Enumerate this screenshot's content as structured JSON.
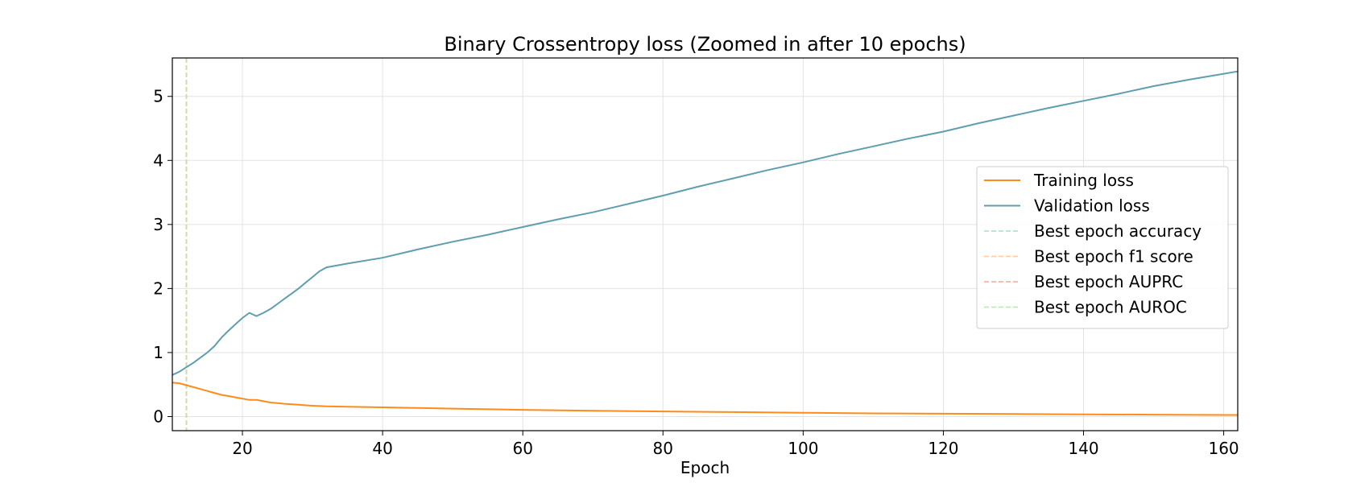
{
  "chart_data": {
    "type": "line",
    "title": "Binary Crossentropy loss (Zoomed in after 10 epochs)",
    "xlabel": "Epoch",
    "ylabel": "",
    "xlim": [
      10,
      162
    ],
    "ylim": [
      -0.22,
      5.6
    ],
    "xticks": [
      20,
      40,
      60,
      80,
      100,
      120,
      140,
      160
    ],
    "yticks": [
      0,
      1,
      2,
      3,
      4,
      5
    ],
    "grid": true,
    "legend_position": "right",
    "series": [
      {
        "name": "Training loss",
        "color": "#ff8c1a",
        "style": "solid",
        "x": [
          10,
          11,
          12,
          13,
          14,
          15,
          16,
          17,
          18,
          19,
          20,
          21,
          22,
          23,
          24,
          25,
          26,
          28,
          30,
          32,
          35,
          40,
          45,
          50,
          60,
          70,
          80,
          90,
          100,
          110,
          120,
          130,
          140,
          150,
          162
        ],
        "y": [
          0.53,
          0.52,
          0.49,
          0.46,
          0.43,
          0.4,
          0.37,
          0.34,
          0.32,
          0.3,
          0.28,
          0.26,
          0.26,
          0.24,
          0.22,
          0.21,
          0.2,
          0.185,
          0.17,
          0.16,
          0.155,
          0.145,
          0.135,
          0.125,
          0.105,
          0.09,
          0.08,
          0.07,
          0.06,
          0.05,
          0.045,
          0.04,
          0.035,
          0.03,
          0.025
        ]
      },
      {
        "name": "Validation loss",
        "color": "#5f9eaf",
        "style": "solid",
        "x": [
          10,
          11,
          12,
          13,
          14,
          15,
          16,
          17,
          18,
          19,
          20,
          21,
          22,
          23,
          24,
          25,
          26,
          27,
          28,
          29,
          30,
          31,
          32,
          35,
          40,
          45,
          50,
          55,
          60,
          65,
          70,
          75,
          80,
          85,
          90,
          95,
          100,
          105,
          110,
          115,
          120,
          125,
          130,
          135,
          140,
          145,
          150,
          155,
          162
        ],
        "y": [
          0.65,
          0.7,
          0.77,
          0.84,
          0.92,
          1.0,
          1.1,
          1.23,
          1.34,
          1.44,
          1.54,
          1.62,
          1.57,
          1.62,
          1.68,
          1.76,
          1.84,
          1.92,
          2.0,
          2.09,
          2.18,
          2.27,
          2.33,
          2.39,
          2.48,
          2.61,
          2.73,
          2.84,
          2.96,
          3.08,
          3.19,
          3.32,
          3.45,
          3.59,
          3.72,
          3.85,
          3.97,
          4.1,
          4.22,
          4.34,
          4.45,
          4.58,
          4.7,
          4.82,
          4.93,
          5.04,
          5.16,
          5.26,
          5.39
        ]
      }
    ],
    "vlines": [
      {
        "name": "Best epoch accuracy",
        "x": 12,
        "color": "#a8dccd",
        "style": "dashed"
      },
      {
        "name": "Best epoch f1 score",
        "x": 12,
        "color": "#ffc89e",
        "style": "dashed"
      },
      {
        "name": "Best epoch AUPRC",
        "x": 12,
        "color": "#f7a59a",
        "style": "dashed"
      },
      {
        "name": "Best epoch AUROC",
        "x": 12,
        "color": "#b6eba4",
        "style": "dashed"
      }
    ]
  }
}
